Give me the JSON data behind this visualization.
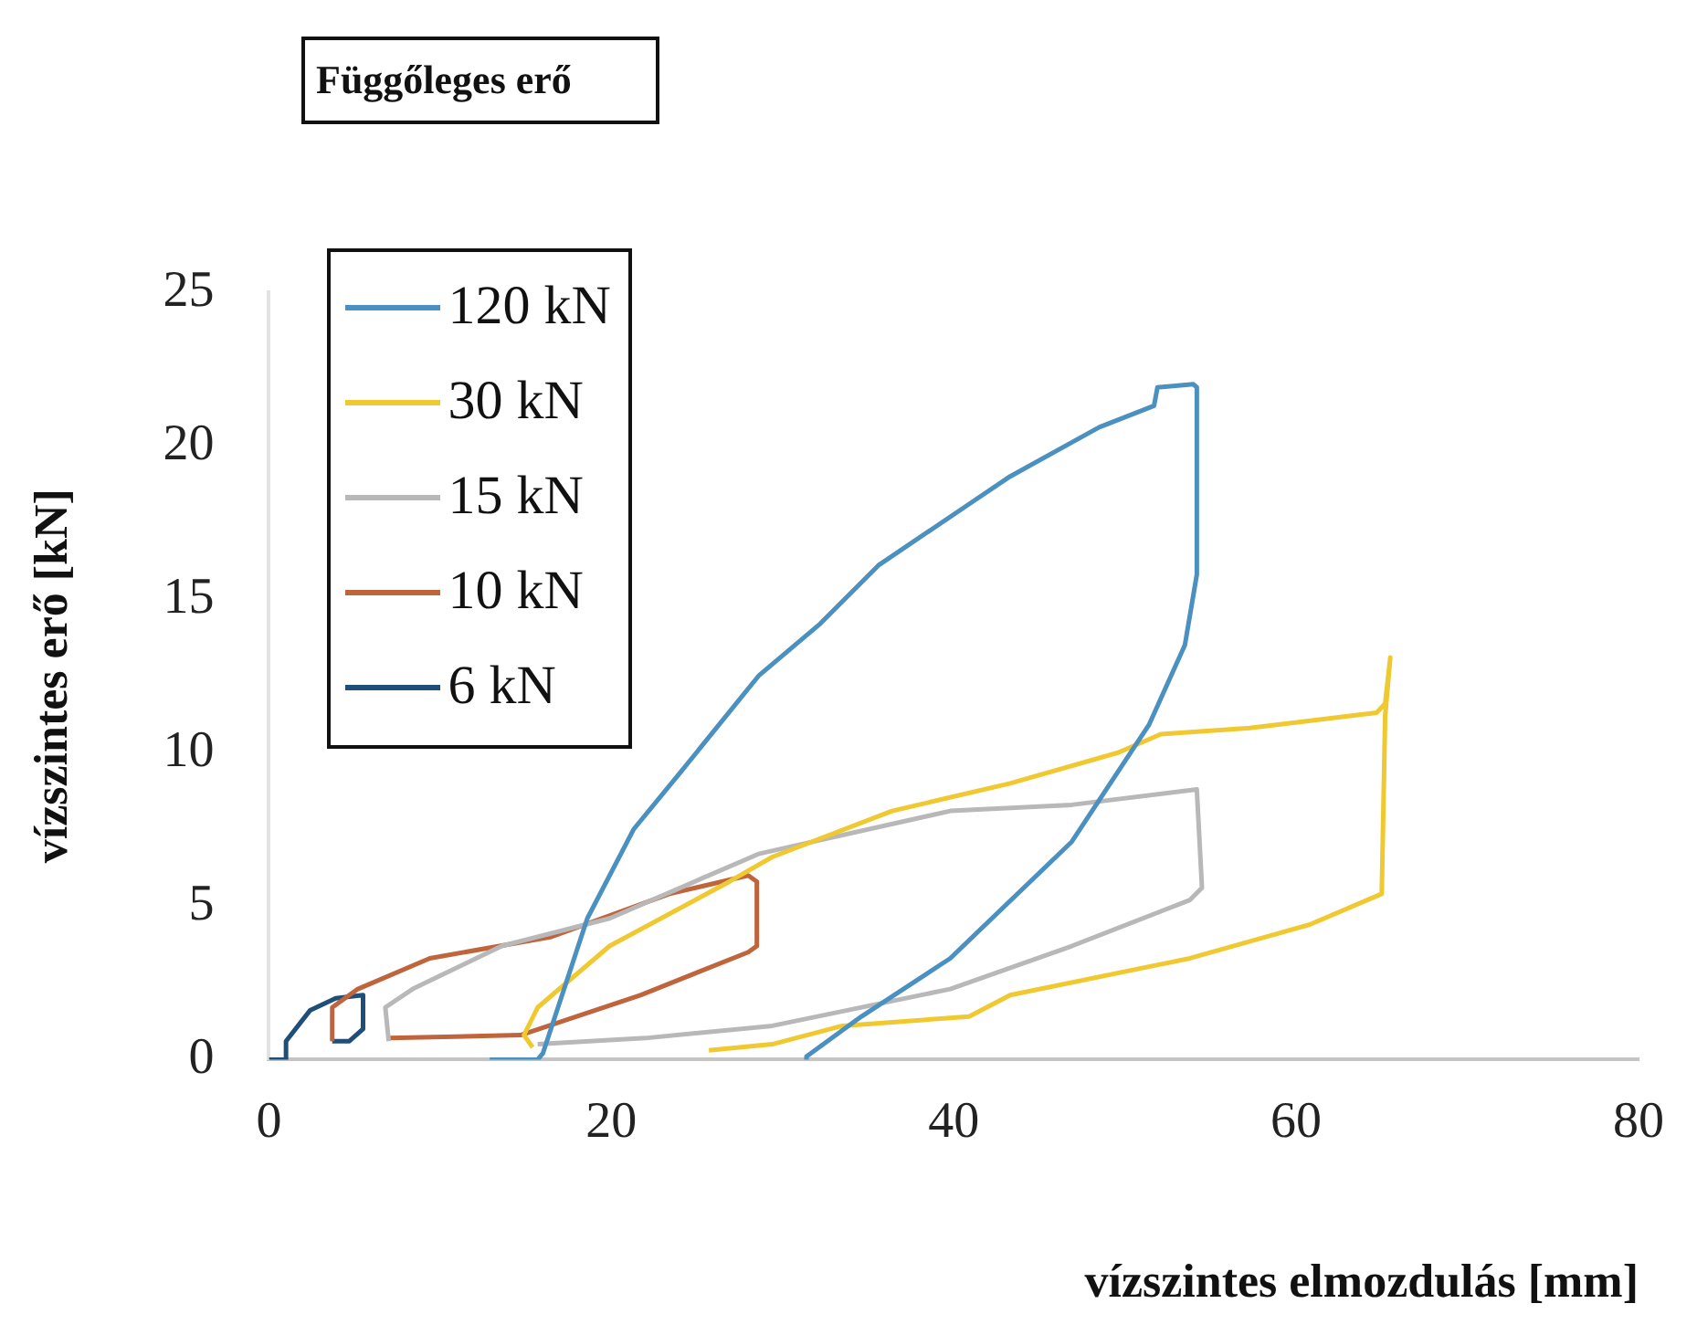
{
  "chart_data": {
    "type": "line",
    "legend_title": "Függőleges erő",
    "xlabel": "vízszintes elmozdulás [mm]",
    "ylabel": "vízszintes erő [kN]",
    "xlim": [
      0,
      80
    ],
    "xticks": [
      0,
      20,
      40,
      60,
      80
    ],
    "ylim": [
      0,
      25
    ],
    "yticks": [
      0,
      5,
      10,
      15,
      20,
      25
    ],
    "grid": false,
    "legend": "top left",
    "marker": "none",
    "line_style": "solid",
    "series": [
      {
        "name": "120 kN",
        "color": "#4a90c0",
        "x": [
          12.9,
          15.7,
          16.0,
          18.6,
          21.3,
          24.1,
          28.6,
          32.2,
          35.6,
          40.9,
          43.3,
          48.5,
          51.7,
          51.9,
          54.0,
          54.2,
          54.2,
          53.5,
          51.4,
          46.9,
          39.8,
          34.6,
          31.4,
          31.4
        ],
        "values": [
          0,
          0,
          0.2,
          4.6,
          7.5,
          9.4,
          12.5,
          14.2,
          16.1,
          18.1,
          19.0,
          20.6,
          21.3,
          21.9,
          22.0,
          21.9,
          15.8,
          13.5,
          10.9,
          7.1,
          3.3,
          1.4,
          0.1,
          0
        ]
      },
      {
        "name": "30 kN",
        "color": "#f0c830",
        "x": [
          25.7,
          29.4,
          33.5,
          40.9,
          43.3,
          53.8,
          60.8,
          65.0,
          65.2,
          65.5,
          65.2,
          64.7,
          57.3,
          52.1,
          49.6,
          43.3,
          36.4,
          29.4,
          26.9,
          19.9,
          15.7,
          14.9,
          15.4
        ],
        "values": [
          0.3,
          0.5,
          1.1,
          1.4,
          2.1,
          3.3,
          4.4,
          5.4,
          11.2,
          13.1,
          11.6,
          11.3,
          10.8,
          10.6,
          10.0,
          9.0,
          8.1,
          6.6,
          5.8,
          3.7,
          1.7,
          0.8,
          0.4
        ]
      },
      {
        "name": "15 kN",
        "color": "#b8b8b8",
        "x": [
          7.0,
          6.8,
          8.4,
          13.6,
          19.9,
          28.6,
          39.8,
          46.9,
          54.2,
          54.5,
          53.8,
          46.9,
          39.8,
          29.4,
          22.0,
          15.7
        ],
        "values": [
          0.6,
          1.7,
          2.3,
          3.7,
          4.6,
          6.7,
          8.1,
          8.3,
          8.8,
          5.6,
          5.2,
          3.7,
          2.3,
          1.1,
          0.7,
          0.5
        ]
      },
      {
        "name": "10 kN",
        "color": "#c0643c",
        "x": [
          3.7,
          3.7,
          5.2,
          9.4,
          16.5,
          23.4,
          28.0,
          28.5,
          28.5,
          28.0,
          21.7,
          14.7,
          7.0
        ],
        "values": [
          0.6,
          1.7,
          2.3,
          3.3,
          4.0,
          5.4,
          6.0,
          5.8,
          3.7,
          3.5,
          2.1,
          0.8,
          0.7
        ]
      },
      {
        "name": "6 kN",
        "color": "#1f4e79",
        "x": [
          0,
          1.0,
          1.0,
          2.4,
          3.9,
          5.5,
          5.5,
          4.7,
          3.7
        ],
        "values": [
          0,
          0,
          0.6,
          1.6,
          2.0,
          2.1,
          1.0,
          0.6,
          0.6
        ]
      }
    ]
  }
}
